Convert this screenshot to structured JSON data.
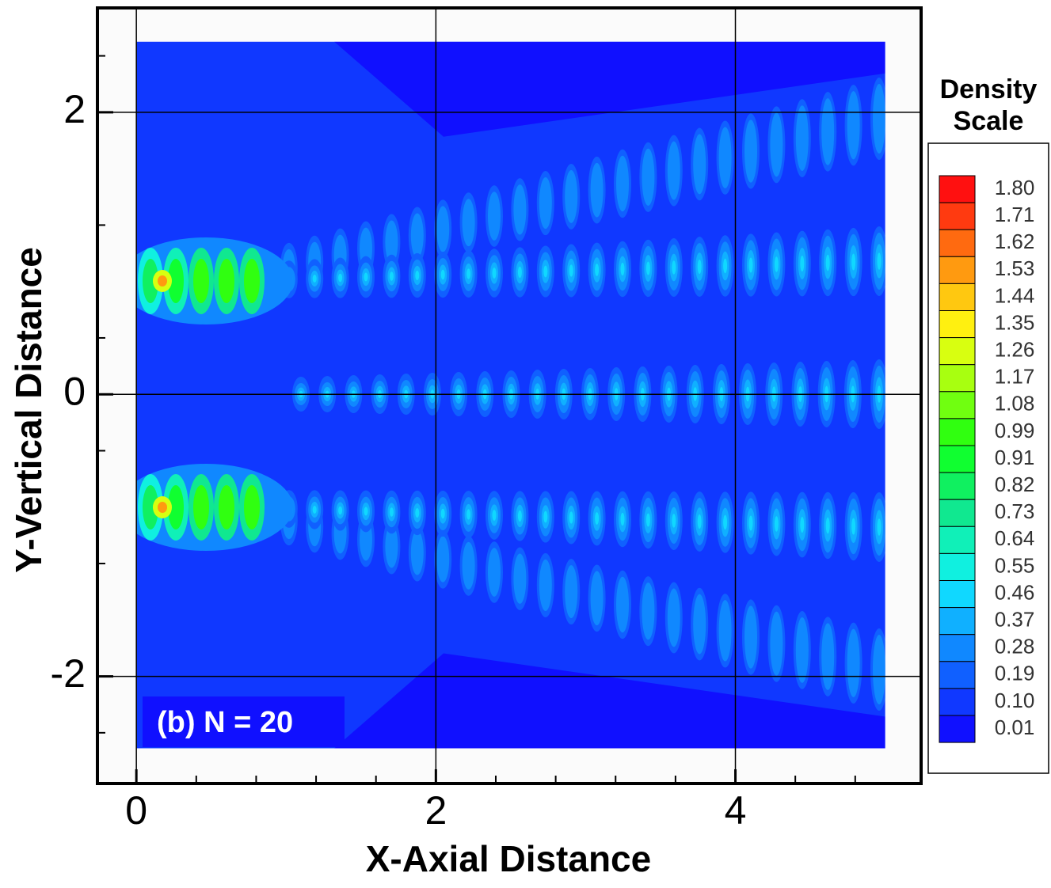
{
  "chart_data": {
    "type": "contour",
    "xlabel": "X-Axial Distance",
    "ylabel": "Y-Vertical Distance",
    "annotation": "(b) N = 20",
    "xlim": [
      -0.26,
      5.24
    ],
    "ylim": [
      -2.76,
      2.74
    ],
    "xticks": [
      0,
      2,
      4
    ],
    "yticks": [
      -2,
      0,
      2
    ],
    "xminor_ticks": [
      0.4,
      0.8,
      1.2,
      1.6,
      2.4,
      2.8,
      3.2,
      3.6,
      4.4,
      4.8
    ],
    "yminor_ticks": [
      -2.4,
      -1.2,
      -0.4,
      0.4,
      1.2,
      2.4
    ],
    "domain_x": [
      0,
      5
    ],
    "domain_y": [
      -2.51,
      2.5
    ],
    "colorbar": {
      "title": [
        "Density",
        "Scale"
      ],
      "levels": [
        {
          "value": 1.8,
          "label": "1.80"
        },
        1.71,
        1.62,
        1.53,
        1.44,
        1.35,
        1.26,
        1.17,
        1.08,
        0.99,
        0.91,
        0.82,
        0.73,
        0.64,
        0.55,
        0.46,
        0.37,
        0.28,
        0.19,
        {
          "value": 0.1,
          "label": "0.10"
        },
        0.01
      ],
      "colors": [
        "#ff1010",
        "#ff3a10",
        "#ff6a10",
        "#ff9a10",
        "#ffc810",
        "#fff010",
        "#d8ff10",
        "#a8ff10",
        "#70ff10",
        "#30ff10",
        "#10ff30",
        "#10f060",
        "#10e890",
        "#10f0b8",
        "#10f0e0",
        "#10d8ff",
        "#10b0ff",
        "#1088ff",
        "#1060ff",
        "#1038ff",
        "#1010ff"
      ]
    }
  }
}
